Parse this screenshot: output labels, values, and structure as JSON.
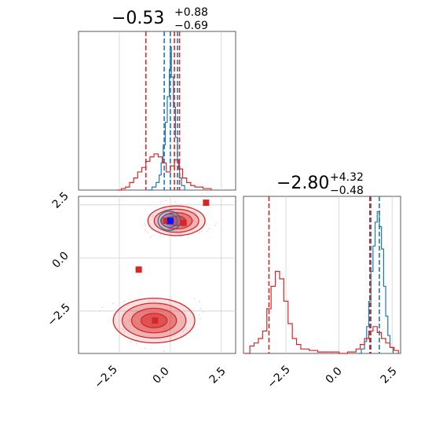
{
  "chart_data": [
    {
      "type": "histogram",
      "panel": "marginal-x",
      "title": {
        "main": "−0.53",
        "sup": "+0.88",
        "sub": "−0.69"
      },
      "xlim": [
        -4.5,
        3.2
      ],
      "grid": true,
      "series": [
        {
          "color": "#1f77b4",
          "bins": [
            [
              -1.1,
              0.0
            ],
            [
              -0.9,
              0.02
            ],
            [
              -0.7,
              0.05
            ],
            [
              -0.55,
              0.1
            ],
            [
              -0.45,
              0.18
            ],
            [
              -0.35,
              0.3
            ],
            [
              -0.25,
              0.45
            ],
            [
              -0.15,
              0.62
            ],
            [
              -0.05,
              0.8
            ],
            [
              0.0,
              0.95
            ],
            [
              0.05,
              0.75
            ],
            [
              0.15,
              0.55
            ],
            [
              0.25,
              0.35
            ],
            [
              0.35,
              0.18
            ],
            [
              0.45,
              0.08
            ],
            [
              0.55,
              0.03
            ],
            [
              0.7,
              0.0
            ]
          ],
          "quantile_lines": [
            -0.3,
            0.0,
            0.35
          ]
        },
        {
          "color": "#d62728",
          "bins": [
            [
              -2.6,
              0.0
            ],
            [
              -2.4,
              0.01
            ],
            [
              -2.2,
              0.02
            ],
            [
              -2.0,
              0.05
            ],
            [
              -1.8,
              0.08
            ],
            [
              -1.6,
              0.12
            ],
            [
              -1.4,
              0.15
            ],
            [
              -1.2,
              0.19
            ],
            [
              -1.0,
              0.22
            ],
            [
              -0.8,
              0.24
            ],
            [
              -0.6,
              0.22
            ],
            [
              -0.4,
              0.18
            ],
            [
              -0.2,
              0.12
            ],
            [
              0.0,
              0.16
            ],
            [
              0.2,
              0.2
            ],
            [
              0.4,
              0.14
            ],
            [
              0.6,
              0.08
            ],
            [
              0.8,
              0.05
            ],
            [
              1.0,
              0.03
            ],
            [
              1.2,
              0.02
            ],
            [
              1.6,
              0.01
            ],
            [
              2.0,
              0.0
            ]
          ],
          "quantile_lines": [
            -1.2,
            0.2,
            0.45
          ]
        }
      ]
    },
    {
      "type": "histogram",
      "panel": "marginal-y",
      "title": {
        "main": "−2.80",
        "sup": "+4.32",
        "sub": "−0.48"
      },
      "xlim": [
        -4.5,
        2.9
      ],
      "xticks": [
        "−2.5",
        "0.0",
        "2.5"
      ],
      "grid": true,
      "series": [
        {
          "color": "#1f77b4",
          "bins": [
            [
              0.9,
              0.0
            ],
            [
              1.05,
              0.03
            ],
            [
              1.2,
              0.08
            ],
            [
              1.3,
              0.18
            ],
            [
              1.4,
              0.35
            ],
            [
              1.5,
              0.55
            ],
            [
              1.6,
              0.72
            ],
            [
              1.7,
              0.88
            ],
            [
              1.8,
              0.95
            ],
            [
              1.9,
              0.85
            ],
            [
              2.0,
              0.7
            ],
            [
              2.1,
              0.45
            ],
            [
              2.2,
              0.25
            ],
            [
              2.3,
              0.12
            ],
            [
              2.4,
              0.04
            ],
            [
              2.55,
              0.0
            ]
          ],
          "quantile_lines": [
            1.5,
            1.9
          ]
        },
        {
          "color": "#d62728",
          "bins": [
            [
              -4.4,
              0.0
            ],
            [
              -4.2,
              0.05
            ],
            [
              -4.0,
              0.07
            ],
            [
              -3.8,
              0.1
            ],
            [
              -3.6,
              0.15
            ],
            [
              -3.4,
              0.3
            ],
            [
              -3.2,
              0.45
            ],
            [
              -3.0,
              0.55
            ],
            [
              -2.8,
              0.5
            ],
            [
              -2.6,
              0.35
            ],
            [
              -2.4,
              0.2
            ],
            [
              -2.2,
              0.1
            ],
            [
              -2.0,
              0.06
            ],
            [
              -1.8,
              0.03
            ],
            [
              -1.4,
              0.02
            ],
            [
              -1.0,
              0.01
            ],
            [
              -0.5,
              0.01
            ],
            [
              0.0,
              0.0
            ],
            [
              0.4,
              0.01
            ],
            [
              0.8,
              0.03
            ],
            [
              1.0,
              0.06
            ],
            [
              1.2,
              0.1
            ],
            [
              1.4,
              0.15
            ],
            [
              1.6,
              0.18
            ],
            [
              1.8,
              0.14
            ],
            [
              2.0,
              0.1
            ],
            [
              2.2,
              0.07
            ],
            [
              2.4,
              0.04
            ],
            [
              2.6,
              0.02
            ],
            [
              2.8,
              0.0
            ]
          ],
          "quantile_lines": [
            -3.3,
            1.45
          ]
        }
      ]
    },
    {
      "type": "contour",
      "panel": "joint",
      "xlim": [
        -4.5,
        3.2
      ],
      "ylim": [
        -4.5,
        2.9
      ],
      "xticks": [
        "−2.5",
        "0.0",
        "2.5"
      ],
      "yticks": [
        "2.5",
        "0.0",
        "−2.5"
      ],
      "grid": true,
      "red_modes": [
        {
          "cx": 0.3,
          "cy": 1.75,
          "rx": 1.4,
          "ry": 0.7
        },
        {
          "cx": -0.8,
          "cy": -2.95,
          "rx": 2.0,
          "ry": 1.05
        }
      ],
      "blue_mode": {
        "cx": -0.05,
        "cy": 1.75,
        "rx": 0.55,
        "ry": 0.45
      },
      "red_markers": [
        [
          -0.05,
          1.75
        ],
        [
          0.65,
          1.65
        ],
        [
          -1.55,
          -0.55
        ],
        [
          -0.75,
          -2.95
        ],
        [
          1.75,
          2.6
        ],
        [
          -0.2,
          1.75
        ]
      ],
      "blue_markers": [
        [
          0.0,
          1.75
        ]
      ],
      "colors": {
        "red": "#d62728",
        "blue": "#1f77b4",
        "grid": "#d0d0d0"
      }
    }
  ]
}
